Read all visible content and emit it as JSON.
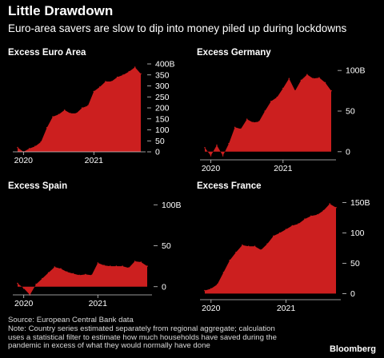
{
  "header": {
    "title": "Little Drawdown",
    "subtitle": "Euro-area savers are slow to dip into money piled up during lockdowns"
  },
  "footer": {
    "source": "Source: European Central Bank data",
    "note_lines": [
      "Note: Country series estimated separately from regional aggregate; calculation",
      "uses a statistical filter to estimate how much households have saved during the",
      "pandemic in excess of what they would normally have done"
    ],
    "brand": "Bloomberg"
  },
  "colors": {
    "background": "#000000",
    "area": "#cc1f1f",
    "text": "#ffffff",
    "axis": "#cccccc"
  },
  "chart_data": [
    {
      "type": "area",
      "title": "Excess Euro Area",
      "unit": "B",
      "x": [
        "2019-12",
        "2020-01",
        "2020-02",
        "2020-03",
        "2020-04",
        "2020-05",
        "2020-06",
        "2020-07",
        "2020-08",
        "2020-09",
        "2020-10",
        "2020-11",
        "2020-12",
        "2021-01",
        "2021-02",
        "2021-03",
        "2021-04",
        "2021-05",
        "2021-06",
        "2021-07",
        "2021-08",
        "2021-09"
      ],
      "values": [
        20,
        0,
        15,
        25,
        45,
        110,
        160,
        170,
        190,
        175,
        175,
        200,
        210,
        275,
        295,
        320,
        320,
        340,
        350,
        365,
        385,
        355
      ],
      "ylim": [
        0,
        400
      ],
      "y_ticks": [
        0,
        50,
        100,
        150,
        200,
        250,
        300,
        350,
        400
      ],
      "y_tick_labels": [
        "0",
        "50",
        "100",
        "150",
        "200",
        "250",
        "300",
        "350",
        "400B"
      ],
      "x_tick_labels": [
        "2020",
        "2021"
      ]
    },
    {
      "type": "area",
      "title": "Excess Germany",
      "unit": "B",
      "x": [
        "2019-12",
        "2020-01",
        "2020-02",
        "2020-03",
        "2020-04",
        "2020-05",
        "2020-06",
        "2020-07",
        "2020-08",
        "2020-09",
        "2020-10",
        "2020-11",
        "2020-12",
        "2021-01",
        "2021-02",
        "2021-03",
        "2021-04",
        "2021-05",
        "2021-06",
        "2021-07",
        "2021-08",
        "2021-09"
      ],
      "values": [
        5,
        -5,
        8,
        -5,
        10,
        30,
        28,
        40,
        36,
        37,
        50,
        62,
        67,
        78,
        90,
        75,
        88,
        95,
        90,
        91,
        85,
        75
      ],
      "ylim": [
        -10,
        110
      ],
      "y_ticks": [
        0,
        50,
        100
      ],
      "y_tick_labels": [
        "0",
        "50",
        "100B"
      ],
      "x_tick_labels": [
        "2020",
        "2021"
      ]
    },
    {
      "type": "area",
      "title": "Excess Spain",
      "unit": "B",
      "x": [
        "2019-12",
        "2020-01",
        "2020-02",
        "2020-03",
        "2020-04",
        "2020-05",
        "2020-06",
        "2020-07",
        "2020-08",
        "2020-09",
        "2020-10",
        "2020-11",
        "2020-12",
        "2021-01",
        "2021-02",
        "2021-03",
        "2021-04",
        "2021-05",
        "2021-06",
        "2021-07",
        "2021-08",
        "2021-09"
      ],
      "values": [
        4,
        -2,
        -10,
        3,
        10,
        17,
        24,
        22,
        18,
        16,
        14,
        15,
        14,
        29,
        26,
        25,
        25,
        25,
        23,
        31,
        30,
        25
      ],
      "ylim": [
        -10,
        110
      ],
      "y_ticks": [
        0,
        50,
        100
      ],
      "y_tick_labels": [
        "0",
        "50",
        "100B"
      ],
      "x_tick_labels": [
        "2020",
        "2021"
      ]
    },
    {
      "type": "area",
      "title": "Excess France",
      "unit": "B",
      "x": [
        "2019-12",
        "2020-01",
        "2020-02",
        "2020-03",
        "2020-04",
        "2020-05",
        "2020-06",
        "2020-07",
        "2020-08",
        "2020-09",
        "2020-10",
        "2020-11",
        "2020-12",
        "2021-01",
        "2021-02",
        "2021-03",
        "2021-04",
        "2021-05",
        "2021-06",
        "2021-07",
        "2021-08",
        "2021-09"
      ],
      "values": [
        5,
        8,
        15,
        35,
        55,
        68,
        80,
        78,
        78,
        72,
        82,
        95,
        100,
        106,
        112,
        115,
        123,
        128,
        130,
        137,
        148,
        142
      ],
      "ylim": [
        -10,
        160
      ],
      "y_ticks": [
        0,
        50,
        100,
        150
      ],
      "y_tick_labels": [
        "0",
        "50",
        "100",
        "150B"
      ],
      "x_tick_labels": [
        "2020",
        "2021"
      ]
    }
  ]
}
